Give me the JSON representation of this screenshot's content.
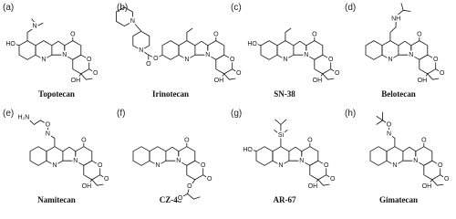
{
  "panels": [
    {
      "label": "(a)",
      "name": "Topotecan",
      "atoms": [
        "N",
        "N",
        "O",
        "O",
        "O",
        "OH",
        "HO",
        "N"
      ]
    },
    {
      "label": "(b)",
      "name": "Irinotecan",
      "atoms": [
        "N",
        "N",
        "O",
        "O",
        "O",
        "OH",
        "O",
        "O",
        "N",
        "N"
      ]
    },
    {
      "label": "(c)",
      "name": "SN-38",
      "atoms": [
        "N",
        "N",
        "O",
        "O",
        "O",
        "OH",
        "HO"
      ]
    },
    {
      "label": "(d)",
      "name": "Belotecan",
      "atoms": [
        "N",
        "N",
        "O",
        "O",
        "O",
        "OH",
        "NH"
      ]
    },
    {
      "label": "(e)",
      "name": "Namitecan",
      "atoms": [
        "N",
        "N",
        "O",
        "O",
        "O",
        "OH",
        "H₂N",
        "O",
        "N"
      ]
    },
    {
      "label": "(f)",
      "name": "CZ-48",
      "atoms": [
        "N",
        "N",
        "O",
        "O",
        "O",
        "O",
        "O"
      ]
    },
    {
      "label": "(g)",
      "name": "AR-67",
      "atoms": [
        "N",
        "N",
        "O",
        "O",
        "O",
        "OH",
        "HO",
        "Si"
      ]
    },
    {
      "label": "(h)",
      "name": "Gimatecan",
      "atoms": [
        "N",
        "N",
        "O",
        "O",
        "O",
        "OH",
        "O",
        "N"
      ]
    }
  ]
}
